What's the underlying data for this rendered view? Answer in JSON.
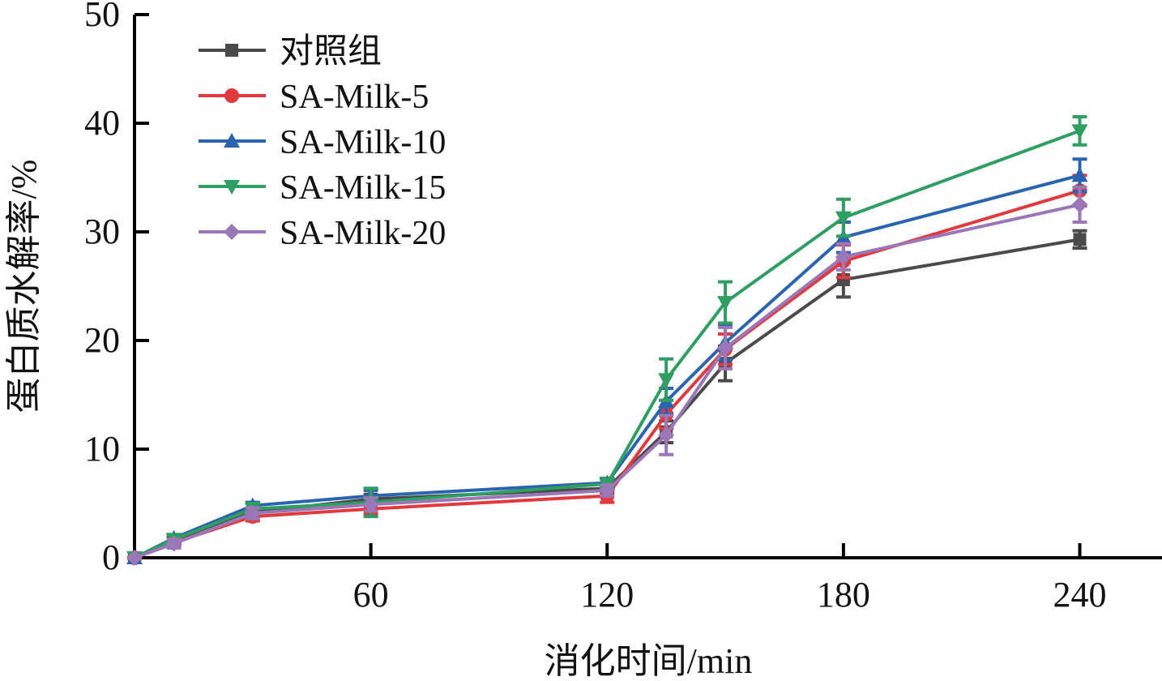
{
  "chart_data": {
    "type": "line",
    "title": "",
    "xlabel": "消化时间/min",
    "ylabel": "蛋白质水解率/%",
    "xlim": [
      0,
      258
    ],
    "ylim": [
      0,
      50
    ],
    "xticks": [
      60,
      120,
      180,
      240
    ],
    "yticks": [
      0,
      10,
      20,
      30,
      40,
      50
    ],
    "grid": false,
    "legend_position": "top-left",
    "x": [
      0,
      10,
      30,
      60,
      120,
      135,
      150,
      180,
      240
    ],
    "series": [
      {
        "name": "对照组",
        "color": "#4a4a4a",
        "marker": "square",
        "values": [
          0,
          1.6,
          4.2,
          5.4,
          6.4,
          11.6,
          17.9,
          25.6,
          29.3
        ],
        "errors": [
          0,
          0.3,
          0.3,
          0.4,
          0.4,
          1.0,
          1.6,
          1.6,
          0.8
        ]
      },
      {
        "name": "SA-Milk-5",
        "color": "#e0393e",
        "marker": "circle",
        "values": [
          0,
          1.4,
          3.8,
          4.5,
          5.7,
          13.2,
          19.2,
          27.3,
          33.8
        ],
        "errors": [
          0,
          0.3,
          0.4,
          0.5,
          0.6,
          1.3,
          1.4,
          1.5,
          1.4
        ]
      },
      {
        "name": "SA-Milk-10",
        "color": "#2a64b0",
        "marker": "triangle-up",
        "values": [
          0,
          1.8,
          4.8,
          5.7,
          6.9,
          14.4,
          19.8,
          29.5,
          35.2
        ],
        "errors": [
          0,
          0.3,
          0.3,
          0.5,
          0.4,
          1.2,
          1.6,
          1.4,
          1.5
        ]
      },
      {
        "name": "SA-Milk-15",
        "color": "#2f9e62",
        "marker": "triangle-down",
        "values": [
          0,
          1.7,
          4.5,
          5.1,
          6.8,
          16.4,
          23.5,
          31.3,
          39.3
        ],
        "errors": [
          0,
          0.4,
          0.5,
          1.3,
          0.4,
          1.9,
          1.9,
          1.7,
          1.3
        ]
      },
      {
        "name": "SA-Milk-20",
        "color": "#9b77b8",
        "marker": "diamond",
        "values": [
          0,
          1.3,
          4.1,
          4.9,
          6.2,
          11.3,
          19.3,
          27.7,
          32.5
        ],
        "errors": [
          0,
          0.4,
          0.5,
          0.6,
          0.5,
          1.8,
          1.9,
          1.2,
          1.6
        ]
      }
    ]
  }
}
